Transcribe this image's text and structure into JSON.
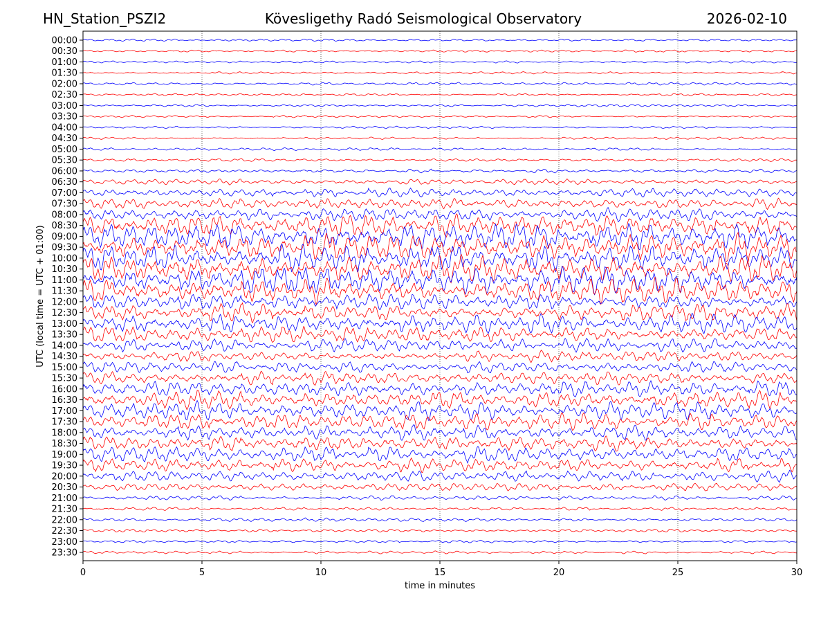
{
  "header": {
    "station": "HN_Station_PSZI2",
    "observatory": "Kövesligethy Radó Seismological Observatory",
    "date": "2026-02-10"
  },
  "chart_data": {
    "type": "line",
    "subtype": "helicorder",
    "xlabel": "time in minutes",
    "ylabel": "UTC (local time = UTC + 01:00)",
    "xlim": [
      0,
      30
    ],
    "xticks": [
      0,
      5,
      10,
      15,
      20,
      25,
      30
    ],
    "grid": "vertical dotted at x ticks",
    "colors": [
      "#0000ff",
      "#ff0000"
    ],
    "rows": [
      "00:00",
      "00:30",
      "01:00",
      "01:30",
      "02:00",
      "02:30",
      "03:00",
      "03:30",
      "04:00",
      "04:30",
      "05:00",
      "05:30",
      "06:00",
      "06:30",
      "07:00",
      "07:30",
      "08:00",
      "08:30",
      "09:00",
      "09:30",
      "10:00",
      "10:30",
      "11:00",
      "11:30",
      "12:00",
      "12:30",
      "13:00",
      "13:30",
      "14:00",
      "14:30",
      "15:00",
      "15:30",
      "16:00",
      "16:30",
      "17:00",
      "17:30",
      "18:00",
      "18:30",
      "19:00",
      "19:30",
      "20:00",
      "20:30",
      "21:00",
      "21:30",
      "22:00",
      "22:30",
      "23:00",
      "23:30"
    ],
    "relative_amplitude": [
      0.1,
      0.1,
      0.1,
      0.1,
      0.12,
      0.1,
      0.1,
      0.1,
      0.1,
      0.1,
      0.12,
      0.15,
      0.18,
      0.25,
      0.4,
      0.5,
      0.6,
      1.0,
      1.2,
      1.2,
      1.2,
      1.2,
      1.2,
      1.1,
      0.7,
      0.8,
      0.8,
      0.7,
      0.6,
      0.5,
      0.5,
      0.6,
      0.7,
      0.8,
      0.8,
      0.7,
      0.7,
      0.7,
      0.7,
      0.6,
      0.5,
      0.35,
      0.2,
      0.15,
      0.15,
      0.15,
      0.12,
      0.12
    ]
  }
}
